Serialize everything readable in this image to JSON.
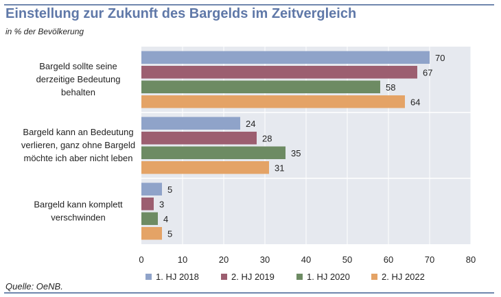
{
  "title": "Einstellung zur Zukunft des Bargelds im Zeitvergleich",
  "subtitle": "in % der Bevölkerung",
  "source": "Quelle: OeNB.",
  "colors": {
    "accent": "#6f86ad",
    "plot_background": "#e6e9ef",
    "gridline": "#ffffff"
  },
  "chart_data": {
    "type": "bar",
    "orientation": "horizontal",
    "title": "Einstellung zur Zukunft des Bargelds im Zeitvergleich",
    "subtitle": "in % der Bevölkerung",
    "categories": [
      [
        "Bargeld sollte seine",
        "derzeitige Bedeutung",
        "behalten"
      ],
      [
        "Bargeld kann an Bedeutung",
        "verlieren, ganz ohne Bargeld",
        "möchte ich aber nicht leben"
      ],
      [
        "Bargeld kann komplett",
        "verschwinden"
      ]
    ],
    "series": [
      {
        "name": "1. HJ 2018",
        "color": "#8fa3c9",
        "values": [
          70,
          24,
          5
        ]
      },
      {
        "name": "2. HJ 2019",
        "color": "#9c5e70",
        "values": [
          67,
          28,
          3
        ]
      },
      {
        "name": "1. HJ 2020",
        "color": "#6d8b63",
        "values": [
          58,
          35,
          4
        ]
      },
      {
        "name": "2. HJ 2022",
        "color": "#e4a366",
        "values": [
          64,
          31,
          5
        ]
      }
    ],
    "xlim": [
      0,
      80
    ],
    "xticks": [
      0,
      10,
      20,
      30,
      40,
      50,
      60,
      70,
      80
    ],
    "grid": true,
    "legend_position": "bottom",
    "source": "Quelle: OeNB."
  }
}
